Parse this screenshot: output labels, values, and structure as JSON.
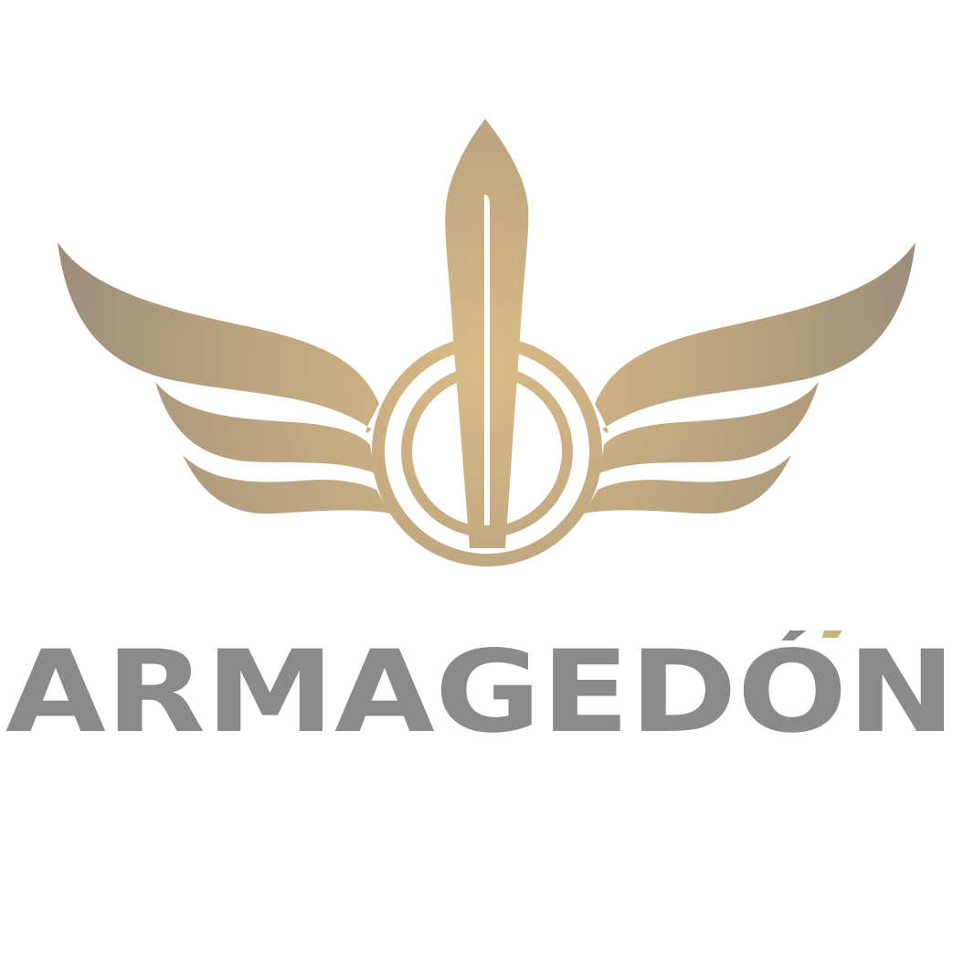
{
  "logo": {
    "wordmark": "ARMAGEDÓN",
    "icon": "winged-sword-emblem-icon",
    "colors": {
      "gold_light": "#d9bb86",
      "gold": "#b8a27e",
      "gold_dark": "#998b78",
      "wordmark": "#8a8a8a",
      "accent": "#c9b07f",
      "background": "#ffffff"
    }
  }
}
